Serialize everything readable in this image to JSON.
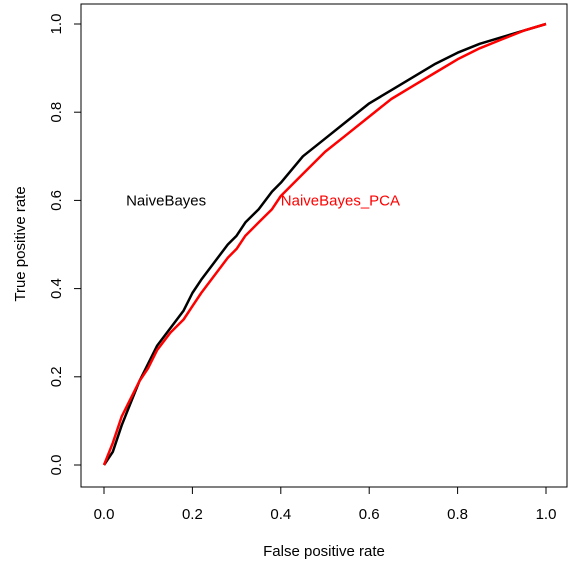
{
  "chart_data": {
    "type": "line",
    "xlabel": "False positive rate",
    "ylabel": "True positive rate",
    "xlim": [
      0,
      1
    ],
    "ylim": [
      0,
      1
    ],
    "x_ticks": [
      "0.0",
      "0.2",
      "0.4",
      "0.6",
      "0.8",
      "1.0"
    ],
    "y_ticks": [
      "0.0",
      "0.2",
      "0.4",
      "0.6",
      "0.8",
      "1.0"
    ],
    "grid": false,
    "annotations": [
      {
        "text": "NaiveBayes",
        "x": 0.05,
        "y": 0.6,
        "color": "#000000",
        "anchor": "start"
      },
      {
        "text": "NaiveBayes_PCA",
        "x": 0.4,
        "y": 0.6,
        "color": "#ff0000",
        "anchor": "start"
      }
    ],
    "series": [
      {
        "color": "#000000",
        "points": [
          [
            0,
            0
          ],
          [
            0.02,
            0.03
          ],
          [
            0.04,
            0.09
          ],
          [
            0.06,
            0.14
          ],
          [
            0.08,
            0.19
          ],
          [
            0.1,
            0.23
          ],
          [
            0.12,
            0.27
          ],
          [
            0.15,
            0.31
          ],
          [
            0.18,
            0.35
          ],
          [
            0.2,
            0.39
          ],
          [
            0.22,
            0.42
          ],
          [
            0.25,
            0.46
          ],
          [
            0.28,
            0.5
          ],
          [
            0.3,
            0.52
          ],
          [
            0.32,
            0.55
          ],
          [
            0.35,
            0.58
          ],
          [
            0.38,
            0.62
          ],
          [
            0.4,
            0.64
          ],
          [
            0.45,
            0.7
          ],
          [
            0.5,
            0.74
          ],
          [
            0.55,
            0.78
          ],
          [
            0.6,
            0.82
          ],
          [
            0.65,
            0.85
          ],
          [
            0.7,
            0.88
          ],
          [
            0.75,
            0.91
          ],
          [
            0.8,
            0.935
          ],
          [
            0.85,
            0.955
          ],
          [
            0.9,
            0.97
          ],
          [
            0.95,
            0.985
          ],
          [
            1.0,
            1.0
          ]
        ]
      },
      {
        "color": "#ff0000",
        "points": [
          [
            0,
            0
          ],
          [
            0.02,
            0.05
          ],
          [
            0.04,
            0.11
          ],
          [
            0.06,
            0.15
          ],
          [
            0.08,
            0.19
          ],
          [
            0.1,
            0.22
          ],
          [
            0.12,
            0.26
          ],
          [
            0.15,
            0.3
          ],
          [
            0.18,
            0.33
          ],
          [
            0.2,
            0.36
          ],
          [
            0.22,
            0.39
          ],
          [
            0.25,
            0.43
          ],
          [
            0.28,
            0.47
          ],
          [
            0.3,
            0.49
          ],
          [
            0.32,
            0.52
          ],
          [
            0.35,
            0.55
          ],
          [
            0.38,
            0.58
          ],
          [
            0.4,
            0.61
          ],
          [
            0.45,
            0.66
          ],
          [
            0.5,
            0.71
          ],
          [
            0.55,
            0.75
          ],
          [
            0.6,
            0.79
          ],
          [
            0.65,
            0.83
          ],
          [
            0.7,
            0.86
          ],
          [
            0.75,
            0.89
          ],
          [
            0.8,
            0.92
          ],
          [
            0.85,
            0.945
          ],
          [
            0.9,
            0.965
          ],
          [
            0.95,
            0.985
          ],
          [
            1.0,
            1.0
          ]
        ]
      }
    ]
  }
}
